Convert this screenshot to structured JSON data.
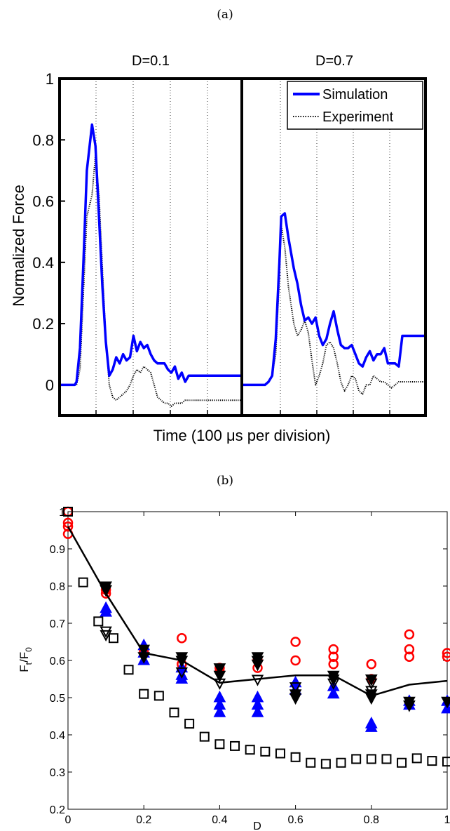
{
  "figure": {
    "panel_a_label": "(a)",
    "panel_b_label": "(b)"
  },
  "colors": {
    "simulation": "#0000ff",
    "experiment": "#000000",
    "red": "#ff0000",
    "blue": "#0000ff",
    "black": "#000000"
  },
  "chart_data": [
    {
      "type": "line",
      "ylabel": "Normalized Force",
      "xlabel": "Time (100 μs per division)",
      "ylim": [
        -0.1,
        1.0
      ],
      "yticks": [
        0,
        0.2,
        0.4,
        0.6,
        0.8,
        1
      ],
      "ytick_labels": [
        "0",
        "0.2",
        "0.4",
        "0.6",
        "0.8",
        "1"
      ],
      "grid": "vertical dotted lines",
      "legend": {
        "placement": "top-right",
        "entries": [
          "Simulation",
          "Experiment"
        ]
      },
      "panels": [
        {
          "title": "D=0.1",
          "x": [
            0.0,
            0.2,
            0.4,
            0.45,
            0.55,
            0.65,
            0.75,
            0.9,
            1.0,
            1.1,
            1.2,
            1.3,
            1.4,
            1.5,
            1.6,
            1.7,
            1.8,
            1.9,
            2.0,
            2.1,
            2.2,
            2.3,
            2.4,
            2.5,
            2.6,
            2.7,
            2.8,
            2.9,
            3.0,
            3.1,
            3.2,
            3.3,
            3.4,
            3.5,
            3.6,
            3.7,
            3.8,
            3.9,
            4.0,
            4.1,
            4.2,
            4.3,
            4.4,
            4.5,
            4.6,
            4.7,
            4.8,
            4.9,
            5.0,
            5.1,
            5.2
          ],
          "series": [
            {
              "name": "Simulation",
              "values": [
                0.0,
                0.0,
                0.0,
                0.01,
                0.12,
                0.4,
                0.7,
                0.85,
                0.78,
                0.55,
                0.32,
                0.14,
                0.03,
                0.05,
                0.09,
                0.07,
                0.1,
                0.08,
                0.09,
                0.16,
                0.11,
                0.14,
                0.12,
                0.13,
                0.1,
                0.08,
                0.07,
                0.07,
                0.07,
                0.05,
                0.04,
                0.06,
                0.02,
                0.04,
                0.01,
                0.03,
                0.03,
                0.03,
                0.03,
                0.03,
                0.03,
                0.03,
                0.03,
                0.03,
                0.03,
                0.03,
                0.03,
                0.03,
                0.03,
                0.03,
                0.03
              ]
            },
            {
              "name": "Experiment",
              "values": [
                0.0,
                0.0,
                0.0,
                0.0,
                0.05,
                0.3,
                0.55,
                0.62,
                0.75,
                0.62,
                0.38,
                0.15,
                0.0,
                -0.04,
                -0.05,
                -0.04,
                -0.03,
                -0.02,
                0.0,
                0.03,
                0.05,
                0.04,
                0.06,
                0.05,
                0.04,
                0.0,
                -0.04,
                -0.05,
                -0.06,
                -0.06,
                -0.07,
                -0.06,
                -0.06,
                -0.06,
                -0.05,
                -0.05,
                -0.05,
                -0.05,
                -0.05,
                -0.05,
                -0.05,
                -0.05,
                -0.05,
                -0.05,
                -0.05,
                -0.05,
                -0.05,
                -0.05,
                -0.05,
                -0.05,
                -0.05
              ]
            }
          ]
        },
        {
          "title": "D=0.7",
          "x": [
            0.0,
            0.5,
            1.0,
            1.2,
            1.4,
            1.6,
            1.8,
            2.0,
            2.1,
            2.3,
            2.5,
            2.8,
            3.0,
            3.2,
            3.4,
            3.6,
            3.8,
            4.0,
            4.2,
            4.4,
            4.6,
            4.8,
            5.0,
            5.2,
            5.4,
            5.6,
            5.8,
            6.0,
            6.2,
            6.4,
            6.6,
            6.8,
            7.0,
            7.2,
            7.4,
            7.6,
            7.8,
            8.0,
            8.2,
            8.4,
            8.6,
            8.8,
            9.0,
            9.2,
            9.4,
            9.6,
            9.8,
            10.0
          ],
          "series": [
            {
              "name": "Simulation",
              "values": [
                0.0,
                0.0,
                0.0,
                0.0,
                0.01,
                0.03,
                0.15,
                0.4,
                0.55,
                0.56,
                0.48,
                0.38,
                0.33,
                0.26,
                0.21,
                0.22,
                0.2,
                0.22,
                0.16,
                0.13,
                0.15,
                0.2,
                0.24,
                0.18,
                0.13,
                0.12,
                0.12,
                0.13,
                0.1,
                0.07,
                0.06,
                0.09,
                0.11,
                0.08,
                0.1,
                0.1,
                0.12,
                0.07,
                0.07,
                0.07,
                0.06,
                0.16,
                0.16,
                0.16,
                0.16,
                0.16,
                0.16,
                0.16
              ]
            },
            {
              "name": "Experiment",
              "values": [
                0.0,
                0.0,
                0.0,
                0.0,
                0.01,
                0.03,
                0.1,
                0.35,
                0.52,
                0.45,
                0.32,
                0.2,
                0.16,
                0.18,
                0.21,
                0.17,
                0.08,
                0.0,
                0.03,
                0.07,
                0.13,
                0.14,
                0.12,
                0.07,
                0.01,
                -0.02,
                0.0,
                0.03,
                0.02,
                -0.02,
                -0.03,
                0.0,
                0.0,
                0.03,
                0.02,
                0.01,
                0.01,
                0.0,
                -0.01,
                0.0,
                0.01,
                0.01,
                0.01,
                0.01,
                0.01,
                0.01,
                0.01,
                0.01
              ]
            }
          ]
        }
      ]
    },
    {
      "type": "scatter",
      "xlabel": "D",
      "ylabel": "F_t/F_0",
      "xlim": [
        0,
        1
      ],
      "ylim": [
        0.2,
        1.0
      ],
      "xticks": [
        0,
        0.2,
        0.4,
        0.6,
        0.8,
        1
      ],
      "xtick_labels": [
        "0",
        "0.2",
        "0.4",
        "0.6",
        "0.8",
        "1"
      ],
      "yticks": [
        0.2,
        0.3,
        0.4,
        0.5,
        0.6,
        0.7,
        0.8,
        0.9,
        1
      ],
      "ytick_labels": [
        "0.2",
        "0.3",
        "0.4",
        "0.5",
        "0.6",
        "0.7",
        "0.8",
        "0.9",
        "1"
      ],
      "series": [
        {
          "marker": "circle",
          "color": "red",
          "points": [
            [
              0,
              1.0
            ],
            [
              0,
              0.97
            ],
            [
              0,
              0.96
            ],
            [
              0,
              0.94
            ],
            [
              0.1,
              0.79
            ],
            [
              0.1,
              0.78
            ],
            [
              0.2,
              0.63
            ],
            [
              0.2,
              0.62
            ],
            [
              0.3,
              0.66
            ],
            [
              0.3,
              0.59
            ],
            [
              0.4,
              0.58
            ],
            [
              0.4,
              0.57
            ],
            [
              0.5,
              0.6
            ],
            [
              0.5,
              0.58
            ],
            [
              0.6,
              0.65
            ],
            [
              0.6,
              0.6
            ],
            [
              0.7,
              0.63
            ],
            [
              0.7,
              0.61
            ],
            [
              0.7,
              0.59
            ],
            [
              0.8,
              0.59
            ],
            [
              0.8,
              0.55
            ],
            [
              0.9,
              0.67
            ],
            [
              0.9,
              0.63
            ],
            [
              0.9,
              0.61
            ],
            [
              1.0,
              0.62
            ],
            [
              1.0,
              0.61
            ]
          ]
        },
        {
          "marker": "triangle-up",
          "color": "blue",
          "points": [
            [
              0.1,
              0.74
            ],
            [
              0.1,
              0.73
            ],
            [
              0.2,
              0.64
            ],
            [
              0.2,
              0.62
            ],
            [
              0.2,
              0.6
            ],
            [
              0.3,
              0.58
            ],
            [
              0.3,
              0.56
            ],
            [
              0.3,
              0.55
            ],
            [
              0.4,
              0.5
            ],
            [
              0.4,
              0.48
            ],
            [
              0.4,
              0.46
            ],
            [
              0.5,
              0.5
            ],
            [
              0.5,
              0.48
            ],
            [
              0.5,
              0.46
            ],
            [
              0.6,
              0.54
            ],
            [
              0.6,
              0.52
            ],
            [
              0.7,
              0.53
            ],
            [
              0.7,
              0.51
            ],
            [
              0.8,
              0.43
            ],
            [
              0.8,
              0.42
            ],
            [
              0.9,
              0.49
            ],
            [
              0.9,
              0.48
            ],
            [
              1.0,
              0.49
            ],
            [
              1.0,
              0.47
            ]
          ]
        },
        {
          "marker": "triangle-down",
          "color": "black",
          "points": [
            [
              0.1,
              0.8
            ],
            [
              0.1,
              0.79
            ],
            [
              0.2,
              0.63
            ],
            [
              0.2,
              0.61
            ],
            [
              0.3,
              0.61
            ],
            [
              0.3,
              0.6
            ],
            [
              0.4,
              0.58
            ],
            [
              0.4,
              0.56
            ],
            [
              0.5,
              0.61
            ],
            [
              0.5,
              0.6
            ],
            [
              0.5,
              0.59
            ],
            [
              0.6,
              0.51
            ],
            [
              0.6,
              0.5
            ],
            [
              0.7,
              0.56
            ],
            [
              0.7,
              0.55
            ],
            [
              0.8,
              0.55
            ],
            [
              0.8,
              0.51
            ],
            [
              0.8,
              0.5
            ],
            [
              0.9,
              0.49
            ],
            [
              0.9,
              0.48
            ],
            [
              1.0,
              0.49
            ]
          ]
        },
        {
          "marker": "triangle-down-open",
          "color": "black",
          "points": [
            [
              0.1,
              0.68
            ],
            [
              0.1,
              0.67
            ],
            [
              0.3,
              0.57
            ],
            [
              0.4,
              0.54
            ],
            [
              0.5,
              0.55
            ],
            [
              0.6,
              0.53
            ],
            [
              0.7,
              0.54
            ],
            [
              0.8,
              0.54
            ],
            [
              0.8,
              0.52
            ]
          ]
        },
        {
          "marker": "square-open",
          "color": "black",
          "points": [
            [
              0,
              1.0
            ],
            [
              0.04,
              0.81
            ],
            [
              0.08,
              0.705
            ],
            [
              0.12,
              0.66
            ],
            [
              0.16,
              0.575
            ],
            [
              0.2,
              0.51
            ],
            [
              0.24,
              0.505
            ],
            [
              0.28,
              0.46
            ],
            [
              0.32,
              0.43
            ],
            [
              0.36,
              0.395
            ],
            [
              0.4,
              0.375
            ],
            [
              0.44,
              0.37
            ],
            [
              0.48,
              0.36
            ],
            [
              0.52,
              0.355
            ],
            [
              0.56,
              0.35
            ],
            [
              0.6,
              0.34
            ],
            [
              0.64,
              0.325
            ],
            [
              0.68,
              0.322
            ],
            [
              0.72,
              0.325
            ],
            [
              0.76,
              0.335
            ],
            [
              0.8,
              0.335
            ],
            [
              0.84,
              0.335
            ],
            [
              0.88,
              0.325
            ],
            [
              0.92,
              0.337
            ],
            [
              0.96,
              0.33
            ],
            [
              1.0,
              0.328
            ]
          ]
        },
        {
          "marker": "line",
          "color": "black",
          "points": [
            [
              0,
              0.96
            ],
            [
              0.1,
              0.78
            ],
            [
              0.2,
              0.62
            ],
            [
              0.3,
              0.6
            ],
            [
              0.4,
              0.54
            ],
            [
              0.5,
              0.55
            ],
            [
              0.6,
              0.56
            ],
            [
              0.7,
              0.56
            ],
            [
              0.8,
              0.505
            ],
            [
              0.9,
              0.535
            ],
            [
              1.0,
              0.545
            ]
          ]
        }
      ]
    }
  ]
}
